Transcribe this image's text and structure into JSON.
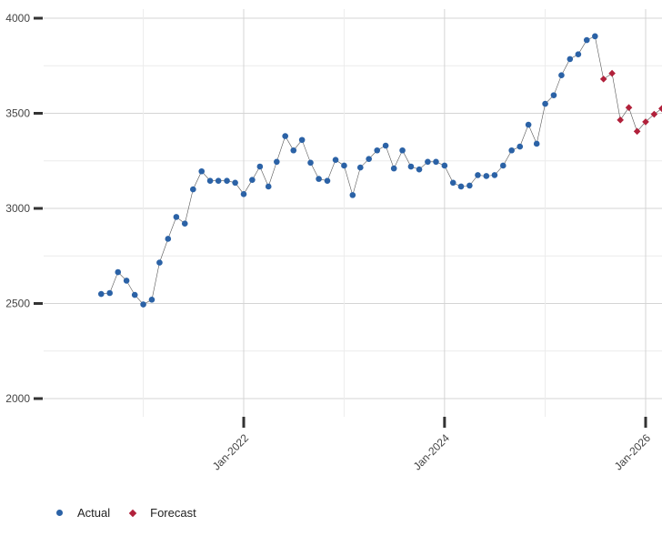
{
  "chart_data": {
    "type": "scatter",
    "ylim": [
      2000,
      4000
    ],
    "yticks": [
      2000,
      2500,
      3000,
      3500,
      4000
    ],
    "xlim": [
      "2020-05-01",
      "2026-01-01"
    ],
    "xticks": [
      {
        "date": "2022-01-01",
        "label": "Jan-2022"
      },
      {
        "date": "2024-01-01",
        "label": "Jan-2024"
      },
      {
        "date": "2026-01-01",
        "label": "Jan-2026"
      }
    ],
    "grid": true,
    "legend_position": "bottom-left",
    "colors": {
      "actual": "#2b62a6",
      "forecast": "#b1213b",
      "line": "#555555"
    },
    "series": [
      {
        "name": "Actual",
        "marker": "circle",
        "points": [
          [
            "2020-08-01",
            2550
          ],
          [
            "2020-09-01",
            2555
          ],
          [
            "2020-10-01",
            2665
          ],
          [
            "2020-11-01",
            2620
          ],
          [
            "2020-12-01",
            2545
          ],
          [
            "2021-01-01",
            2495
          ],
          [
            "2021-02-01",
            2520
          ],
          [
            "2021-03-01",
            2715
          ],
          [
            "2021-04-01",
            2840
          ],
          [
            "2021-05-01",
            2955
          ],
          [
            "2021-06-01",
            2920
          ],
          [
            "2021-07-01",
            3100
          ],
          [
            "2021-08-01",
            3195
          ],
          [
            "2021-09-01",
            3145
          ],
          [
            "2021-10-01",
            3145
          ],
          [
            "2021-11-01",
            3145
          ],
          [
            "2021-12-01",
            3135
          ],
          [
            "2022-01-01",
            3075
          ],
          [
            "2022-02-01",
            3150
          ],
          [
            "2022-03-01",
            3220
          ],
          [
            "2022-04-01",
            3115
          ],
          [
            "2022-05-01",
            3245
          ],
          [
            "2022-06-01",
            3380
          ],
          [
            "2022-07-01",
            3305
          ],
          [
            "2022-08-01",
            3360
          ],
          [
            "2022-09-01",
            3240
          ],
          [
            "2022-10-01",
            3155
          ],
          [
            "2022-11-01",
            3145
          ],
          [
            "2022-12-01",
            3255
          ],
          [
            "2023-01-01",
            3225
          ],
          [
            "2023-02-01",
            3070
          ],
          [
            "2023-03-01",
            3215
          ],
          [
            "2023-04-01",
            3260
          ],
          [
            "2023-05-01",
            3305
          ],
          [
            "2023-06-01",
            3330
          ],
          [
            "2023-07-01",
            3210
          ],
          [
            "2023-08-01",
            3305
          ],
          [
            "2023-09-01",
            3220
          ],
          [
            "2023-10-01",
            3205
          ],
          [
            "2023-11-01",
            3245
          ],
          [
            "2023-12-01",
            3245
          ],
          [
            "2024-01-01",
            3225
          ],
          [
            "2024-02-01",
            3135
          ],
          [
            "2024-03-01",
            3115
          ],
          [
            "2024-04-01",
            3120
          ],
          [
            "2024-05-01",
            3175
          ],
          [
            "2024-06-01",
            3170
          ],
          [
            "2024-07-01",
            3175
          ],
          [
            "2024-08-01",
            3225
          ],
          [
            "2024-09-01",
            3305
          ],
          [
            "2024-10-01",
            3325
          ],
          [
            "2024-11-01",
            3440
          ],
          [
            "2024-12-01",
            3340
          ],
          [
            "2025-01-01",
            3550
          ],
          [
            "2025-02-01",
            3595
          ],
          [
            "2025-03-01",
            3700
          ],
          [
            "2025-04-01",
            3785
          ],
          [
            "2025-05-01",
            3810
          ],
          [
            "2025-06-01",
            3885
          ],
          [
            "2025-07-01",
            3905
          ]
        ]
      },
      {
        "name": "Forecast",
        "marker": "diamond",
        "points": [
          [
            "2025-08-01",
            3680
          ],
          [
            "2025-09-01",
            3710
          ],
          [
            "2025-10-01",
            3465
          ],
          [
            "2025-11-01",
            3530
          ],
          [
            "2025-12-01",
            3405
          ],
          [
            "2026-01-01",
            3455
          ],
          [
            "2026-02-01",
            3495
          ],
          [
            "2026-03-01",
            3525
          ]
        ]
      }
    ]
  },
  "legend": {
    "items": [
      {
        "label": "Actual",
        "color": "#2b62a6",
        "marker": "circle"
      },
      {
        "label": "Forecast",
        "color": "#b1213b",
        "marker": "diamond"
      }
    ]
  }
}
